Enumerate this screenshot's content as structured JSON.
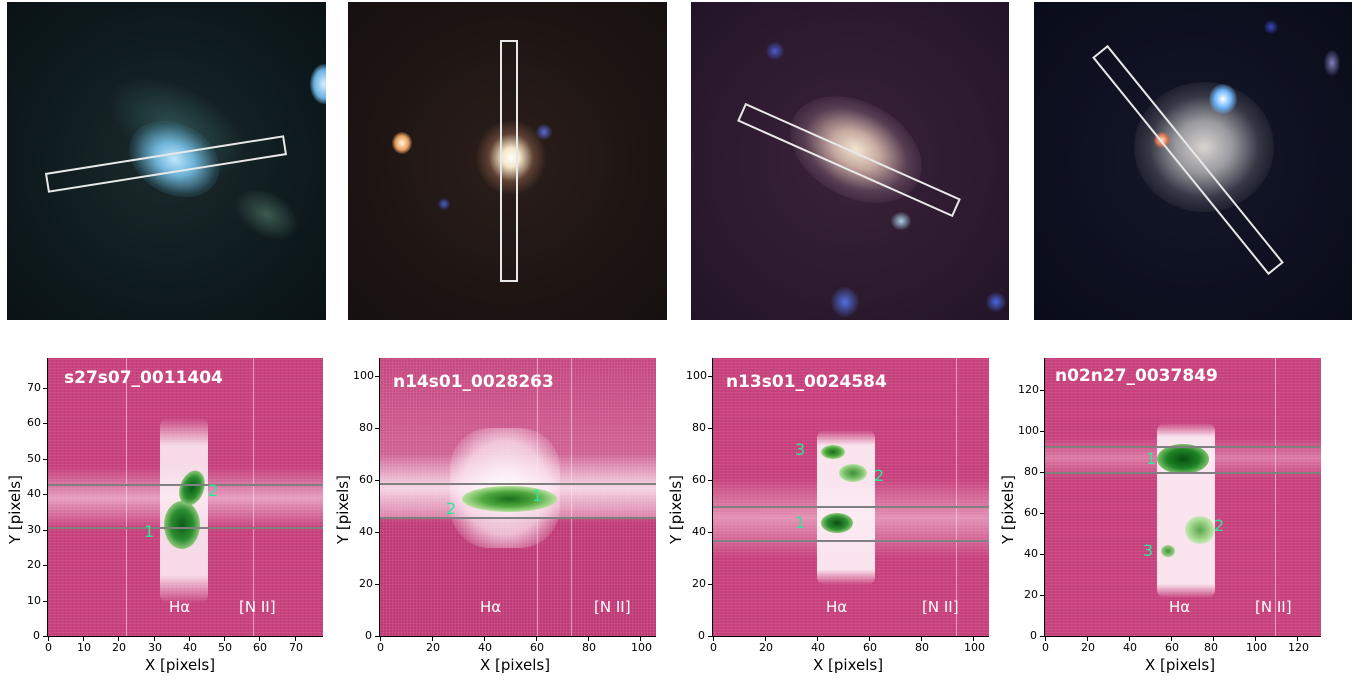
{
  "panels": [
    {
      "id": "s27s07_0011404",
      "title": "s27s07_0011404",
      "xlabel": "X [pixels]",
      "ylabel": "Y [pixels]",
      "xticks": [
        "0",
        "10",
        "20",
        "30",
        "40",
        "50",
        "60",
        "70"
      ],
      "yticks": [
        "0",
        "10",
        "20",
        "30",
        "40",
        "50",
        "60",
        "70"
      ],
      "lines": [
        "Hα",
        "[N II]"
      ],
      "knots": [
        "1",
        "2"
      ]
    },
    {
      "id": "n14s01_0028263",
      "title": "n14s01_0028263",
      "xlabel": "X [pixels]",
      "ylabel": "Y [pixels]",
      "xticks": [
        "0",
        "20",
        "40",
        "60",
        "80",
        "100"
      ],
      "yticks": [
        "0",
        "20",
        "40",
        "60",
        "80",
        "100"
      ],
      "lines": [
        "Hα",
        "[N II]"
      ],
      "knots": [
        "2",
        "1"
      ]
    },
    {
      "id": "n13s01_0024584",
      "title": "n13s01_0024584",
      "xlabel": "X [pixels]",
      "ylabel": "Y [pixels]",
      "xticks": [
        "0",
        "20",
        "40",
        "60",
        "80",
        "100"
      ],
      "yticks": [
        "0",
        "20",
        "40",
        "60",
        "80",
        "100"
      ],
      "lines": [
        "Hα",
        "[N II]"
      ],
      "knots": [
        "3",
        "2",
        "1"
      ]
    },
    {
      "id": "n02n27_0037849",
      "title": "n02n27_0037849",
      "xlabel": "X [pixels]",
      "ylabel": "Y [pixels]",
      "xticks": [
        "0",
        "20",
        "40",
        "60",
        "80",
        "100",
        "120"
      ],
      "yticks": [
        "0",
        "20",
        "40",
        "60",
        "80",
        "100",
        "120"
      ],
      "lines": [
        "Hα",
        "[N II]"
      ],
      "knots": [
        "1",
        "2",
        "3"
      ]
    }
  ],
  "colors": {
    "background": "#c9437e",
    "knot_label": "#2ee89a",
    "aperture_line": "#808080",
    "slit": "#e8e8e8"
  }
}
